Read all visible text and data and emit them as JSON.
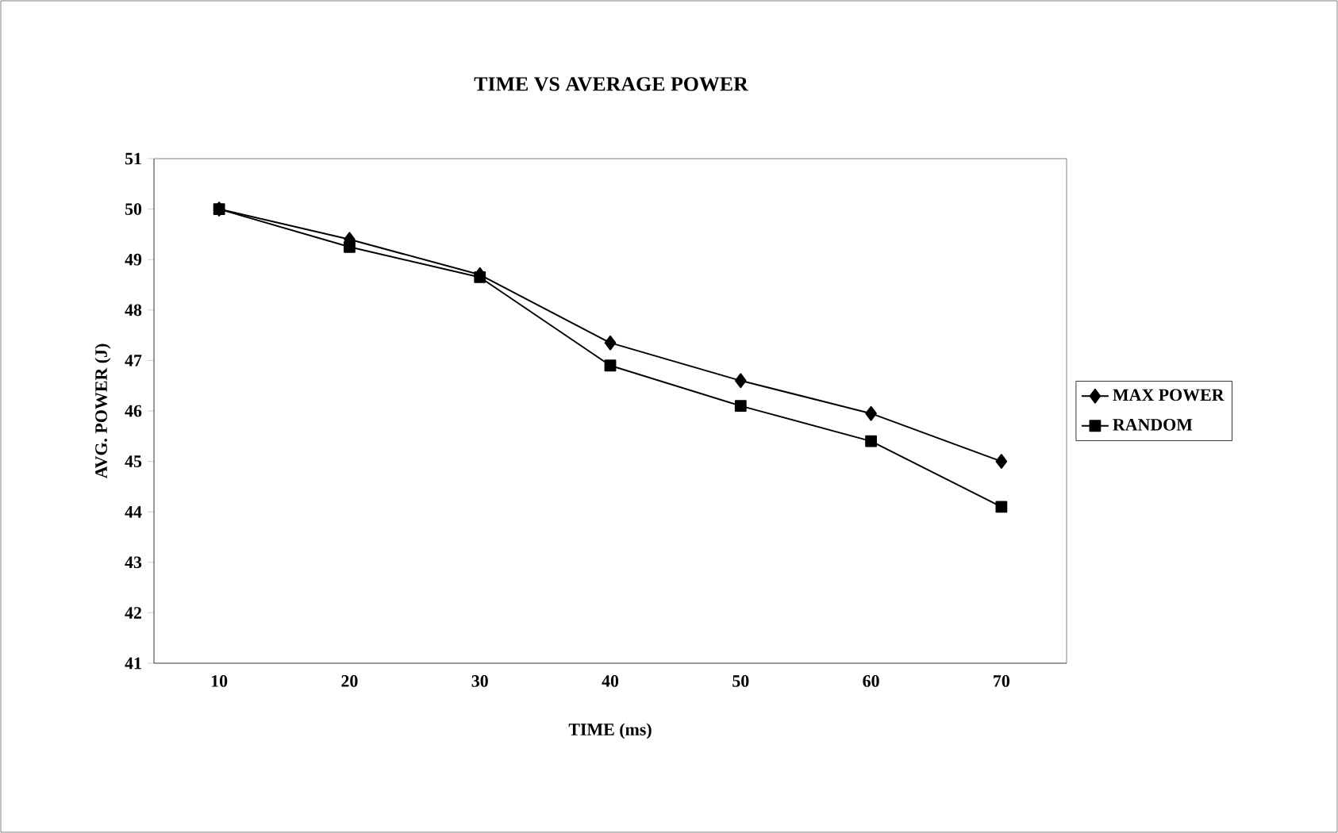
{
  "chart_data": {
    "type": "line",
    "title": "TIME VS AVERAGE POWER",
    "xlabel": "TIME (ms)",
    "ylabel": "AVG. POWER (J)",
    "categories": [
      "10",
      "20",
      "30",
      "40",
      "50",
      "60",
      "70"
    ],
    "series": [
      {
        "name": "MAX POWER",
        "color": "#000000",
        "marker": "diamond",
        "values": [
          50.0,
          49.4,
          48.7,
          47.35,
          46.6,
          45.95,
          45.0
        ]
      },
      {
        "name": "RANDOM",
        "color": "#000000",
        "marker": "square",
        "values": [
          50.0,
          49.25,
          48.65,
          46.9,
          46.1,
          45.4,
          44.1
        ]
      }
    ],
    "ylim": [
      41,
      51
    ],
    "yticks": [
      41,
      42,
      43,
      44,
      45,
      46,
      47,
      48,
      49,
      50,
      51
    ],
    "grid": false,
    "legend": "right",
    "line_style": "solid"
  }
}
